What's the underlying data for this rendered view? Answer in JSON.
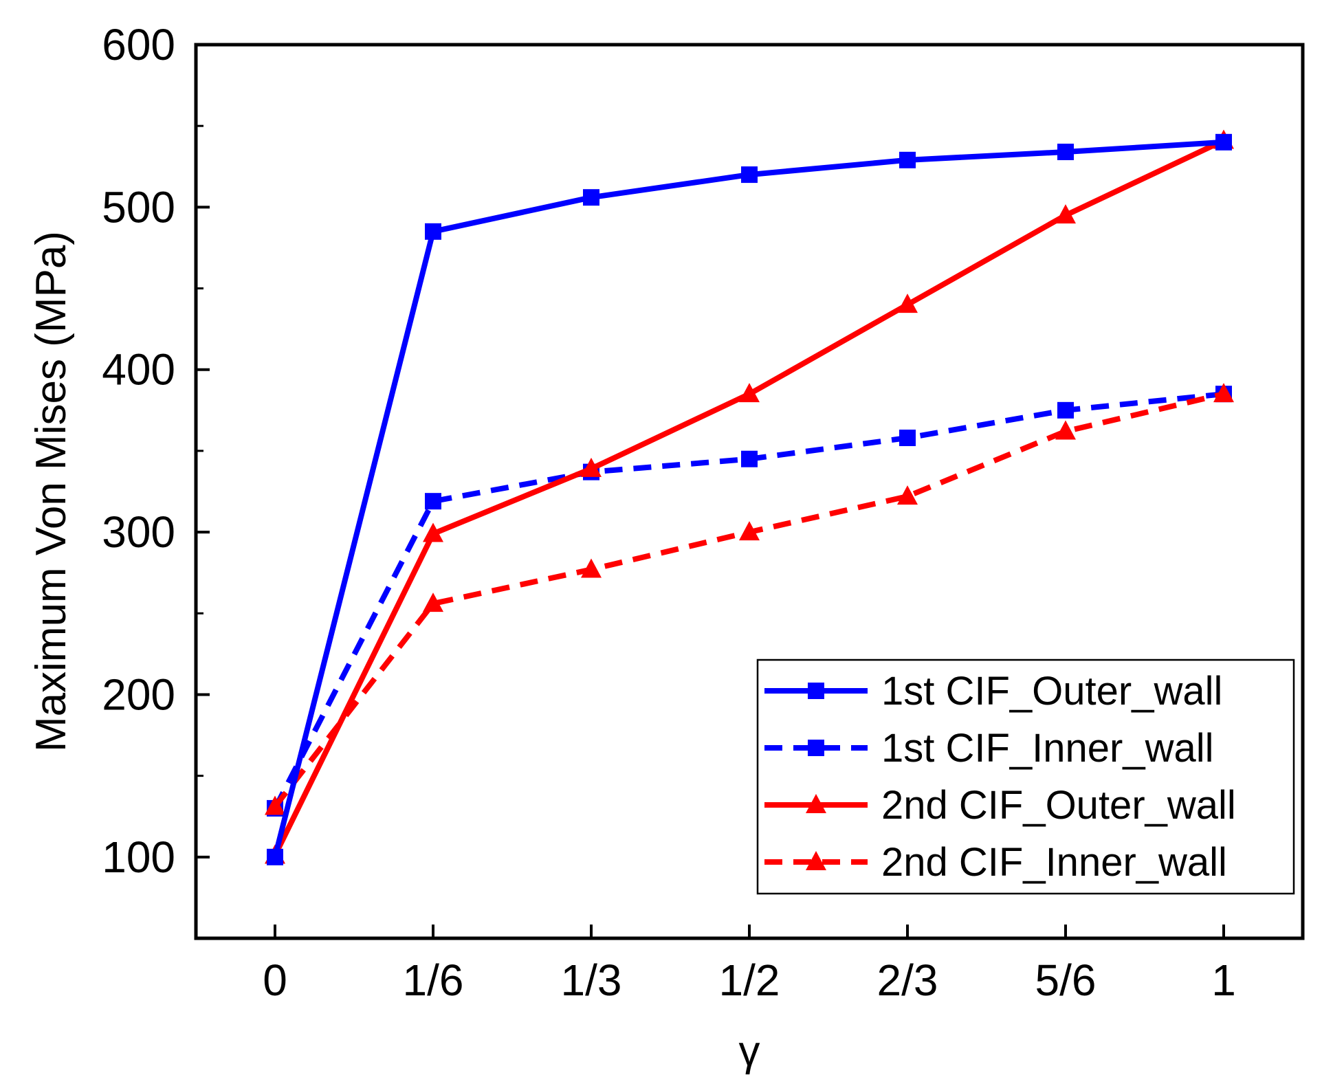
{
  "chart_data": {
    "type": "line",
    "title": "",
    "xlabel": "γ",
    "ylabel": "Maximum Von Mises (MPa)",
    "categories": [
      "0",
      "1/6",
      "1/3",
      "1/2",
      "2/3",
      "5/6",
      "1"
    ],
    "ylim": [
      50,
      600
    ],
    "yticks": [
      100,
      200,
      300,
      400,
      500,
      600
    ],
    "grid": false,
    "legend_position": "bottom-right",
    "series": [
      {
        "name": "1st CIF_Outer_wall",
        "color": "#0000ff",
        "line_style": "solid",
        "marker": "square",
        "values": [
          100,
          485,
          506,
          520,
          529,
          534,
          540
        ]
      },
      {
        "name": "1st CIF_Inner_wall",
        "color": "#0000ff",
        "line_style": "dashed",
        "marker": "square",
        "values": [
          130,
          319,
          337,
          345,
          358,
          375,
          385
        ]
      },
      {
        "name": "2nd CIF_Outer_wall",
        "color": "#ff0000",
        "line_style": "solid",
        "marker": "triangle",
        "values": [
          101,
          299,
          339,
          385,
          440,
          495,
          541
        ]
      },
      {
        "name": "2nd CIF_Inner_wall",
        "color": "#ff0000",
        "line_style": "dashed",
        "marker": "triangle",
        "values": [
          131,
          256,
          277,
          300,
          322,
          362,
          385
        ]
      }
    ]
  }
}
